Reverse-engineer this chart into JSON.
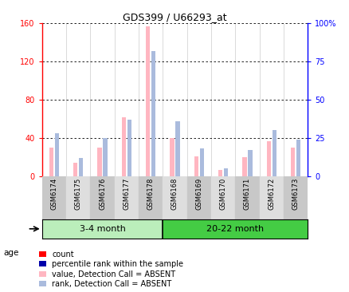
{
  "title": "GDS399 / U66293_at",
  "samples": [
    "GSM6174",
    "GSM6175",
    "GSM6176",
    "GSM6177",
    "GSM6178",
    "GSM6168",
    "GSM6169",
    "GSM6170",
    "GSM6171",
    "GSM6172",
    "GSM6173"
  ],
  "group1_label": "3-4 month",
  "group2_label": "20-22 month",
  "group1_count": 5,
  "group2_count": 6,
  "value_absent": [
    30,
    14,
    30,
    62,
    157,
    40,
    21,
    7,
    20,
    37,
    30
  ],
  "rank_absent": [
    28,
    12,
    25,
    37,
    82,
    36,
    18,
    5,
    17,
    30,
    24
  ],
  "ylim_left": [
    0,
    160
  ],
  "ylim_right": [
    0,
    100
  ],
  "yticks_left": [
    0,
    40,
    80,
    120,
    160
  ],
  "yticks_right": [
    0,
    25,
    50,
    75,
    100
  ],
  "ytick_labels_left": [
    "0",
    "40",
    "80",
    "120",
    "160"
  ],
  "ytick_labels_right": [
    "0",
    "25",
    "50",
    "75",
    "100%"
  ],
  "color_value_absent": "#FFB6C1",
  "color_rank_absent": "#AABBDD",
  "color_value_present": "#FF0000",
  "color_rank_present": "#0000CD",
  "legend_items": [
    {
      "label": "count",
      "color": "#FF0000"
    },
    {
      "label": "percentile rank within the sample",
      "color": "#0000AA"
    },
    {
      "label": "value, Detection Call = ABSENT",
      "color": "#FFB6C1"
    },
    {
      "label": "rank, Detection Call = ABSENT",
      "color": "#AABBDD"
    }
  ],
  "age_label": "age",
  "group1_color": "#BBEEBB",
  "group2_color": "#44CC44",
  "label_bg_even": "#C8C8C8",
  "label_bg_odd": "#DEDEDE"
}
